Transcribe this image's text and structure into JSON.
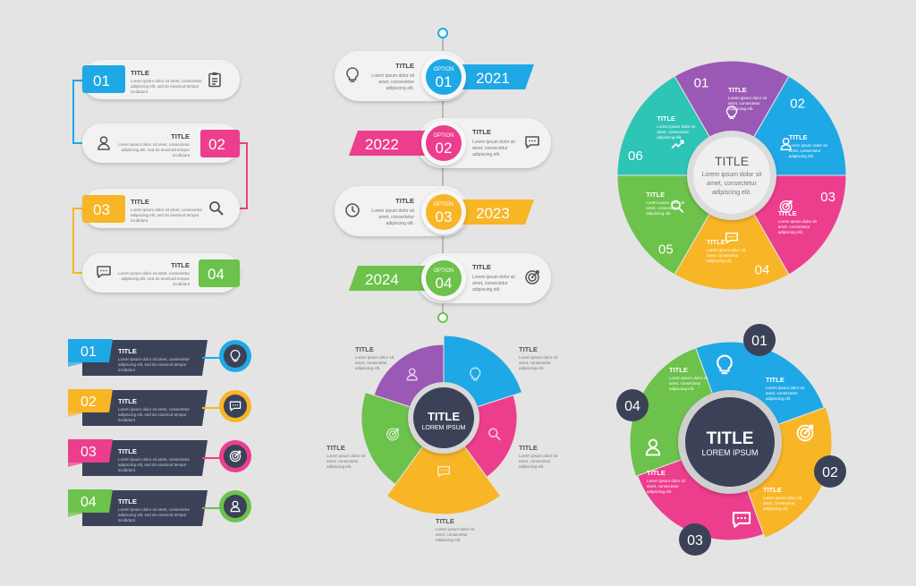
{
  "colors": {
    "blue": "#1fa8e6",
    "pink": "#ec3e8c",
    "yellow": "#f8b526",
    "green": "#6cc24a",
    "purple": "#9b59b6",
    "teal": "#2ec4b6",
    "navy": "#3b4258",
    "card": "#f2f2f2",
    "background": "#e4e4e4"
  },
  "shared": {
    "title": "TITLE",
    "body_line1": "Lorem ipsum dolor sit amet, consectetur",
    "body_line2": "adipiscing elit, sed do eiusmod tempor",
    "body_line3": "incididunt"
  },
  "steps_list": {
    "items": [
      {
        "number": "01",
        "title": "TITLE",
        "icon": "clipboard-icon"
      },
      {
        "number": "02",
        "title": "TITLE",
        "icon": "user-icon"
      },
      {
        "number": "03",
        "title": "TITLE",
        "icon": "search-icon"
      },
      {
        "number": "04",
        "title": "TITLE",
        "icon": "chat-icon"
      }
    ]
  },
  "timeline": {
    "option_label": "OPTION",
    "text_line1": "Lorem ipsum dolor sit",
    "text_line2": "amet, consectetur",
    "text_line3": "adipiscing elit.",
    "items": [
      {
        "option": "01",
        "year": "2021",
        "title": "TITLE",
        "icon": "lightbulb-icon"
      },
      {
        "option": "02",
        "year": "2022",
        "title": "TITLE",
        "icon": "chat-icon"
      },
      {
        "option": "03",
        "year": "2023",
        "title": "TITLE",
        "icon": "clock-icon"
      },
      {
        "option": "04",
        "year": "2024",
        "title": "TITLE",
        "icon": "target-icon"
      }
    ]
  },
  "cycle_six": {
    "center_title": "TITLE",
    "center_line1": "Lorem ipsum dolor sit",
    "center_line2": "amet, consectetur",
    "center_line3": "adipiscing elit.",
    "segments": [
      {
        "number": "01",
        "title": "TITLE",
        "icon": "lightbulb-icon",
        "color": "#9b59b6"
      },
      {
        "number": "02",
        "title": "TITLE",
        "icon": "user-icon",
        "color": "#1fa8e6"
      },
      {
        "number": "03",
        "title": "TITLE",
        "icon": "target-icon",
        "color": "#ec3e8c"
      },
      {
        "number": "04",
        "title": "TITLE",
        "icon": "chat-icon",
        "color": "#f8b526"
      },
      {
        "number": "05",
        "title": "TITLE",
        "icon": "search-icon",
        "color": "#6cc24a"
      },
      {
        "number": "06",
        "title": "TITLE",
        "icon": "chart-up-icon",
        "color": "#2ec4b6"
      }
    ],
    "segment_text_line1": "Lorem ipsum dolor sit",
    "segment_text_line2": "amet, consectetur",
    "segment_text_line3": "adipiscing elit."
  },
  "ribbon_list": {
    "items": [
      {
        "number": "01",
        "title": "TITLE",
        "icon": "lightbulb-icon",
        "color": "#1fa8e6"
      },
      {
        "number": "02",
        "title": "TITLE",
        "icon": "chat-icon",
        "color": "#f8b526"
      },
      {
        "number": "03",
        "title": "TITLE",
        "icon": "target-icon",
        "color": "#ec3e8c"
      },
      {
        "number": "04",
        "title": "TITLE",
        "icon": "user-icon",
        "color": "#6cc24a"
      }
    ],
    "text_line1": "Lorem ipsum dolor sit amet, consectetur",
    "text_line2": "adipiscing elit, sed do eiusmod tempor",
    "text_line3": "incididunt"
  },
  "pie_five": {
    "center_title": "TITLE",
    "center_subtitle": "LOREM IPSUM",
    "labels": [
      {
        "title": "TITLE",
        "position": "top-left"
      },
      {
        "title": "TITLE",
        "position": "top-right"
      },
      {
        "title": "TITLE",
        "position": "left"
      },
      {
        "title": "TITLE",
        "position": "right"
      },
      {
        "title": "TITLE",
        "position": "bottom"
      }
    ],
    "text_line1": "Lorem ipsum dolor sit",
    "text_line2": "amet, consectetur",
    "text_line3": "adipiscing elit."
  },
  "cycle_four": {
    "center_title": "TITLE",
    "center_subtitle": "LOREM IPSUM",
    "segments": [
      {
        "number": "01",
        "title": "TITLE",
        "icon": "target-icon",
        "color": "#1fa8e6"
      },
      {
        "number": "02",
        "title": "TITLE",
        "icon": "chat-icon",
        "color": "#f8b526"
      },
      {
        "number": "03",
        "title": "TITLE",
        "icon": "user-icon",
        "color": "#ec3e8c"
      },
      {
        "number": "04",
        "title": "TITLE",
        "icon": "lightbulb-icon",
        "color": "#6cc24a"
      }
    ],
    "text_line1": "Lorem ipsum dolor sit",
    "text_line2": "amet, consectetur",
    "text_line3": "adipiscing elit."
  }
}
